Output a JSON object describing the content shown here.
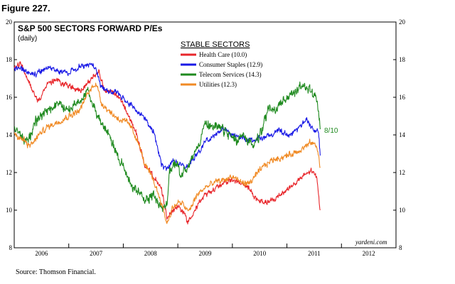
{
  "figure_label": "Figure 227.",
  "source": "Source: Thomson Financial.",
  "watermark": "yardeni.com",
  "annotation": "8/10",
  "chart_data": {
    "type": "line",
    "title": "S&P 500 SECTORS FORWARD P/Es",
    "subtitle": "(daily)",
    "legend_title": "STABLE SECTORS",
    "xlabel": "",
    "ylabel": "",
    "xlim": [
      2006.0,
      2013.0
    ],
    "ylim": [
      8,
      20
    ],
    "yticks": [
      8,
      10,
      12,
      14,
      16,
      18,
      20
    ],
    "xtick_labels": [
      "2006",
      "2007",
      "2008",
      "2009",
      "2010",
      "2011",
      "2012"
    ],
    "grid": false,
    "series": [
      {
        "name": "Health Care (10.0)",
        "color": "#e8262b",
        "noise": 0.18,
        "points": [
          [
            2006.0,
            17.5
          ],
          [
            2006.12,
            17.8
          ],
          [
            2006.3,
            16.6
          ],
          [
            2006.45,
            15.8
          ],
          [
            2006.6,
            16.7
          ],
          [
            2006.8,
            16.9
          ],
          [
            2007.0,
            16.6
          ],
          [
            2007.2,
            16.3
          ],
          [
            2007.4,
            16.9
          ],
          [
            2007.55,
            17.4
          ],
          [
            2007.65,
            16.4
          ],
          [
            2007.8,
            16.2
          ],
          [
            2007.95,
            15.9
          ],
          [
            2008.1,
            15.0
          ],
          [
            2008.25,
            14.0
          ],
          [
            2008.4,
            12.3
          ],
          [
            2008.55,
            11.8
          ],
          [
            2008.7,
            11.1
          ],
          [
            2008.8,
            9.6
          ],
          [
            2008.9,
            10.0
          ],
          [
            2009.0,
            10.2
          ],
          [
            2009.1,
            9.9
          ],
          [
            2009.18,
            9.4
          ],
          [
            2009.3,
            10.0
          ],
          [
            2009.5,
            10.8
          ],
          [
            2009.7,
            11.2
          ],
          [
            2009.85,
            11.5
          ],
          [
            2010.0,
            11.6
          ],
          [
            2010.15,
            11.4
          ],
          [
            2010.3,
            11.2
          ],
          [
            2010.45,
            10.5
          ],
          [
            2010.6,
            10.4
          ],
          [
            2010.75,
            10.5
          ],
          [
            2010.9,
            10.9
          ],
          [
            2011.1,
            11.3
          ],
          [
            2011.3,
            11.8
          ],
          [
            2011.45,
            12.1
          ],
          [
            2011.55,
            11.7
          ],
          [
            2011.61,
            10.0
          ]
        ]
      },
      {
        "name": "Consumer Staples (12.9)",
        "color": "#1a1ae6",
        "noise": 0.18,
        "points": [
          [
            2006.0,
            17.6
          ],
          [
            2006.2,
            17.4
          ],
          [
            2006.4,
            17.2
          ],
          [
            2006.6,
            17.6
          ],
          [
            2006.8,
            17.4
          ],
          [
            2007.0,
            17.3
          ],
          [
            2007.2,
            17.6
          ],
          [
            2007.4,
            17.8
          ],
          [
            2007.5,
            17.5
          ],
          [
            2007.6,
            16.5
          ],
          [
            2007.75,
            16.3
          ],
          [
            2007.9,
            16.2
          ],
          [
            2008.05,
            15.8
          ],
          [
            2008.25,
            15.3
          ],
          [
            2008.4,
            14.9
          ],
          [
            2008.55,
            14.2
          ],
          [
            2008.6,
            13.7
          ],
          [
            2008.7,
            12.4
          ],
          [
            2008.8,
            12.1
          ],
          [
            2008.9,
            12.6
          ],
          [
            2009.0,
            12.5
          ],
          [
            2009.15,
            12.3
          ],
          [
            2009.3,
            12.8
          ],
          [
            2009.5,
            13.6
          ],
          [
            2009.7,
            14.1
          ],
          [
            2009.85,
            14.3
          ],
          [
            2010.0,
            14.0
          ],
          [
            2010.2,
            13.8
          ],
          [
            2010.4,
            13.7
          ],
          [
            2010.55,
            13.9
          ],
          [
            2010.7,
            14.0
          ],
          [
            2010.85,
            14.3
          ],
          [
            2011.0,
            14.0
          ],
          [
            2011.2,
            14.3
          ],
          [
            2011.35,
            14.8
          ],
          [
            2011.5,
            14.2
          ],
          [
            2011.58,
            14.2
          ],
          [
            2011.61,
            12.9
          ]
        ]
      },
      {
        "name": "Telecom Services (14.3)",
        "color": "#1f8a1f",
        "noise": 0.32,
        "points": [
          [
            2006.0,
            14.5
          ],
          [
            2006.1,
            14.0
          ],
          [
            2006.25,
            13.6
          ],
          [
            2006.4,
            14.8
          ],
          [
            2006.6,
            15.2
          ],
          [
            2006.8,
            15.7
          ],
          [
            2007.0,
            15.3
          ],
          [
            2007.2,
            15.8
          ],
          [
            2007.35,
            16.3
          ],
          [
            2007.5,
            15.3
          ],
          [
            2007.6,
            14.5
          ],
          [
            2007.75,
            14.0
          ],
          [
            2007.9,
            12.9
          ],
          [
            2008.05,
            12.0
          ],
          [
            2008.15,
            11.3
          ],
          [
            2008.25,
            11.0
          ],
          [
            2008.4,
            10.5
          ],
          [
            2008.55,
            10.9
          ],
          [
            2008.7,
            10.1
          ],
          [
            2008.8,
            10.2
          ],
          [
            2008.85,
            12.2
          ],
          [
            2008.95,
            12.4
          ],
          [
            2009.05,
            12.0
          ],
          [
            2009.2,
            12.3
          ],
          [
            2009.35,
            13.3
          ],
          [
            2009.5,
            14.6
          ],
          [
            2009.65,
            14.5
          ],
          [
            2009.8,
            14.3
          ],
          [
            2009.95,
            14.0
          ],
          [
            2010.1,
            13.7
          ],
          [
            2010.25,
            13.9
          ],
          [
            2010.4,
            13.4
          ],
          [
            2010.55,
            14.2
          ],
          [
            2010.65,
            15.4
          ],
          [
            2010.8,
            15.3
          ],
          [
            2010.95,
            15.8
          ],
          [
            2011.1,
            16.2
          ],
          [
            2011.3,
            16.7
          ],
          [
            2011.45,
            16.3
          ],
          [
            2011.55,
            15.8
          ],
          [
            2011.61,
            14.3
          ]
        ]
      },
      {
        "name": "Utilities (12.3)",
        "color": "#f08a24",
        "noise": 0.2,
        "points": [
          [
            2006.0,
            14.0
          ],
          [
            2006.15,
            13.8
          ],
          [
            2006.3,
            13.4
          ],
          [
            2006.45,
            14.0
          ],
          [
            2006.6,
            14.4
          ],
          [
            2006.8,
            14.7
          ],
          [
            2007.0,
            15.0
          ],
          [
            2007.2,
            15.3
          ],
          [
            2007.35,
            16.2
          ],
          [
            2007.5,
            16.8
          ],
          [
            2007.6,
            15.7
          ],
          [
            2007.8,
            15.1
          ],
          [
            2007.95,
            14.8
          ],
          [
            2008.1,
            14.6
          ],
          [
            2008.25,
            13.8
          ],
          [
            2008.4,
            12.4
          ],
          [
            2008.55,
            11.6
          ],
          [
            2008.7,
            10.4
          ],
          [
            2008.8,
            9.3
          ],
          [
            2008.9,
            10.1
          ],
          [
            2009.0,
            10.4
          ],
          [
            2009.1,
            10.3
          ],
          [
            2009.2,
            9.9
          ],
          [
            2009.35,
            10.8
          ],
          [
            2009.5,
            11.2
          ],
          [
            2009.7,
            11.5
          ],
          [
            2009.85,
            11.6
          ],
          [
            2010.0,
            11.8
          ],
          [
            2010.15,
            11.5
          ],
          [
            2010.3,
            11.4
          ],
          [
            2010.45,
            11.9
          ],
          [
            2010.6,
            12.4
          ],
          [
            2010.75,
            12.7
          ],
          [
            2010.9,
            12.8
          ],
          [
            2011.1,
            13.0
          ],
          [
            2011.3,
            13.3
          ],
          [
            2011.45,
            13.6
          ],
          [
            2011.55,
            13.4
          ],
          [
            2011.61,
            12.3
          ]
        ]
      }
    ]
  }
}
